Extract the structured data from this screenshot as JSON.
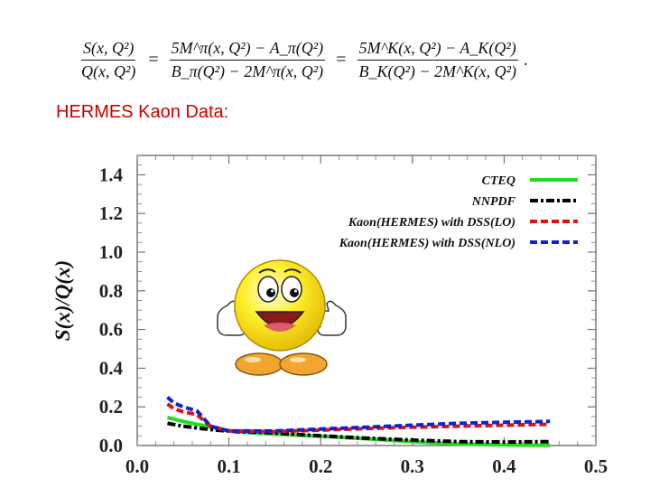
{
  "formula": {
    "lhs_num": "S(x, Q²)",
    "lhs_den": "Q(x, Q²)",
    "mid_num": "5M^π(x, Q²) − A_π(Q²)",
    "mid_den": "B_π(Q²) − 2M^π(x, Q²)",
    "rhs_num": "5M^K(x, Q²) − A_K(Q²)",
    "rhs_den": "B_K(Q²) − 2M^K(x, Q²)",
    "eq": "=",
    "end": "."
  },
  "subtitle": "HERMES Kaon Data:",
  "chart_data": {
    "type": "line",
    "title": "",
    "xlabel": "",
    "ylabel": "S(x)/Q(x)",
    "xlim": [
      0.0,
      0.5
    ],
    "ylim": [
      0.0,
      1.5
    ],
    "xticks": [
      0.0,
      0.1,
      0.2,
      0.3,
      0.4,
      0.5
    ],
    "xtick_labels": [
      "0.0",
      "0.1",
      "0.2",
      "0.3",
      "0.4",
      "0.5"
    ],
    "yticks": [
      0.0,
      0.2,
      0.4,
      0.6,
      0.8,
      1.0,
      1.2,
      1.4
    ],
    "ytick_labels": [
      "0.0",
      "0.2",
      "0.4",
      "0.6",
      "0.8",
      "1.0",
      "1.2",
      "1.4"
    ],
    "legend_position": "top-right",
    "series": [
      {
        "name": "CTEQ",
        "color": "#22dd22",
        "style": "solid",
        "x": [
          0.033,
          0.05,
          0.07,
          0.09,
          0.11,
          0.15,
          0.2,
          0.25,
          0.3,
          0.35,
          0.4,
          0.45
        ],
        "y": [
          0.145,
          0.125,
          0.105,
          0.085,
          0.07,
          0.06,
          0.048,
          0.035,
          0.02,
          0.008,
          0.003,
          0.001
        ]
      },
      {
        "name": "NNPDF",
        "color": "#000000",
        "style": "dashdot",
        "x": [
          0.033,
          0.05,
          0.07,
          0.09,
          0.11,
          0.15,
          0.2,
          0.25,
          0.3,
          0.35,
          0.4,
          0.45
        ],
        "y": [
          0.115,
          0.1,
          0.088,
          0.078,
          0.072,
          0.065,
          0.05,
          0.038,
          0.028,
          0.02,
          0.018,
          0.02
        ]
      },
      {
        "name": "Kaon(HERMES) with DSS(LO)",
        "color": "#dd1111",
        "style": "dashed",
        "x": [
          0.033,
          0.04,
          0.05,
          0.065,
          0.08,
          0.1,
          0.15,
          0.2,
          0.25,
          0.3,
          0.35,
          0.4,
          0.45
        ],
        "y": [
          0.215,
          0.19,
          0.175,
          0.16,
          0.1,
          0.075,
          0.072,
          0.08,
          0.088,
          0.095,
          0.1,
          0.105,
          0.11
        ]
      },
      {
        "name": "Kaon(HERMES) with DSS(NLO)",
        "color": "#1122cc",
        "style": "dashed",
        "x": [
          0.033,
          0.04,
          0.05,
          0.065,
          0.08,
          0.1,
          0.15,
          0.2,
          0.25,
          0.3,
          0.35,
          0.4,
          0.45
        ],
        "y": [
          0.25,
          0.22,
          0.2,
          0.18,
          0.1,
          0.075,
          0.075,
          0.085,
          0.095,
          0.105,
          0.115,
          0.12,
          0.125
        ]
      }
    ]
  },
  "decoration": {
    "image": "smiley-thumbs-up"
  }
}
